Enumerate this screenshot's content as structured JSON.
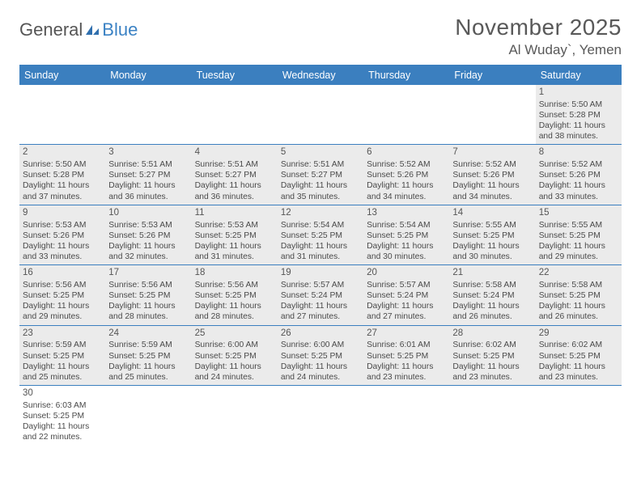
{
  "brand": {
    "part1": "General",
    "part2": "Blue"
  },
  "title": "November 2025",
  "location": "Al Wuday`, Yemen",
  "colors": {
    "header_bg": "#3b7fbf",
    "header_text": "#ffffff",
    "cell_bg": "#ebebeb",
    "rule": "#3b7fbf",
    "text": "#4a4a4a"
  },
  "dow": [
    "Sunday",
    "Monday",
    "Tuesday",
    "Wednesday",
    "Thursday",
    "Friday",
    "Saturday"
  ],
  "leading_blanks": 6,
  "days": [
    {
      "n": 1,
      "sunrise": "5:50 AM",
      "sunset": "5:28 PM",
      "dl_h": 11,
      "dl_m": 38
    },
    {
      "n": 2,
      "sunrise": "5:50 AM",
      "sunset": "5:28 PM",
      "dl_h": 11,
      "dl_m": 37
    },
    {
      "n": 3,
      "sunrise": "5:51 AM",
      "sunset": "5:27 PM",
      "dl_h": 11,
      "dl_m": 36
    },
    {
      "n": 4,
      "sunrise": "5:51 AM",
      "sunset": "5:27 PM",
      "dl_h": 11,
      "dl_m": 36
    },
    {
      "n": 5,
      "sunrise": "5:51 AM",
      "sunset": "5:27 PM",
      "dl_h": 11,
      "dl_m": 35
    },
    {
      "n": 6,
      "sunrise": "5:52 AM",
      "sunset": "5:26 PM",
      "dl_h": 11,
      "dl_m": 34
    },
    {
      "n": 7,
      "sunrise": "5:52 AM",
      "sunset": "5:26 PM",
      "dl_h": 11,
      "dl_m": 34
    },
    {
      "n": 8,
      "sunrise": "5:52 AM",
      "sunset": "5:26 PM",
      "dl_h": 11,
      "dl_m": 33
    },
    {
      "n": 9,
      "sunrise": "5:53 AM",
      "sunset": "5:26 PM",
      "dl_h": 11,
      "dl_m": 33
    },
    {
      "n": 10,
      "sunrise": "5:53 AM",
      "sunset": "5:26 PM",
      "dl_h": 11,
      "dl_m": 32
    },
    {
      "n": 11,
      "sunrise": "5:53 AM",
      "sunset": "5:25 PM",
      "dl_h": 11,
      "dl_m": 31
    },
    {
      "n": 12,
      "sunrise": "5:54 AM",
      "sunset": "5:25 PM",
      "dl_h": 11,
      "dl_m": 31
    },
    {
      "n": 13,
      "sunrise": "5:54 AM",
      "sunset": "5:25 PM",
      "dl_h": 11,
      "dl_m": 30
    },
    {
      "n": 14,
      "sunrise": "5:55 AM",
      "sunset": "5:25 PM",
      "dl_h": 11,
      "dl_m": 30
    },
    {
      "n": 15,
      "sunrise": "5:55 AM",
      "sunset": "5:25 PM",
      "dl_h": 11,
      "dl_m": 29
    },
    {
      "n": 16,
      "sunrise": "5:56 AM",
      "sunset": "5:25 PM",
      "dl_h": 11,
      "dl_m": 29
    },
    {
      "n": 17,
      "sunrise": "5:56 AM",
      "sunset": "5:25 PM",
      "dl_h": 11,
      "dl_m": 28
    },
    {
      "n": 18,
      "sunrise": "5:56 AM",
      "sunset": "5:25 PM",
      "dl_h": 11,
      "dl_m": 28
    },
    {
      "n": 19,
      "sunrise": "5:57 AM",
      "sunset": "5:24 PM",
      "dl_h": 11,
      "dl_m": 27
    },
    {
      "n": 20,
      "sunrise": "5:57 AM",
      "sunset": "5:24 PM",
      "dl_h": 11,
      "dl_m": 27
    },
    {
      "n": 21,
      "sunrise": "5:58 AM",
      "sunset": "5:24 PM",
      "dl_h": 11,
      "dl_m": 26
    },
    {
      "n": 22,
      "sunrise": "5:58 AM",
      "sunset": "5:25 PM",
      "dl_h": 11,
      "dl_m": 26
    },
    {
      "n": 23,
      "sunrise": "5:59 AM",
      "sunset": "5:25 PM",
      "dl_h": 11,
      "dl_m": 25
    },
    {
      "n": 24,
      "sunrise": "5:59 AM",
      "sunset": "5:25 PM",
      "dl_h": 11,
      "dl_m": 25
    },
    {
      "n": 25,
      "sunrise": "6:00 AM",
      "sunset": "5:25 PM",
      "dl_h": 11,
      "dl_m": 24
    },
    {
      "n": 26,
      "sunrise": "6:00 AM",
      "sunset": "5:25 PM",
      "dl_h": 11,
      "dl_m": 24
    },
    {
      "n": 27,
      "sunrise": "6:01 AM",
      "sunset": "5:25 PM",
      "dl_h": 11,
      "dl_m": 23
    },
    {
      "n": 28,
      "sunrise": "6:02 AM",
      "sunset": "5:25 PM",
      "dl_h": 11,
      "dl_m": 23
    },
    {
      "n": 29,
      "sunrise": "6:02 AM",
      "sunset": "5:25 PM",
      "dl_h": 11,
      "dl_m": 23
    },
    {
      "n": 30,
      "sunrise": "6:03 AM",
      "sunset": "5:25 PM",
      "dl_h": 11,
      "dl_m": 22
    }
  ],
  "labels": {
    "sunrise": "Sunrise:",
    "sunset": "Sunset:",
    "daylight_prefix": "Daylight:",
    "hours_word": "hours",
    "and_word": "and",
    "minutes_word": "minutes."
  }
}
